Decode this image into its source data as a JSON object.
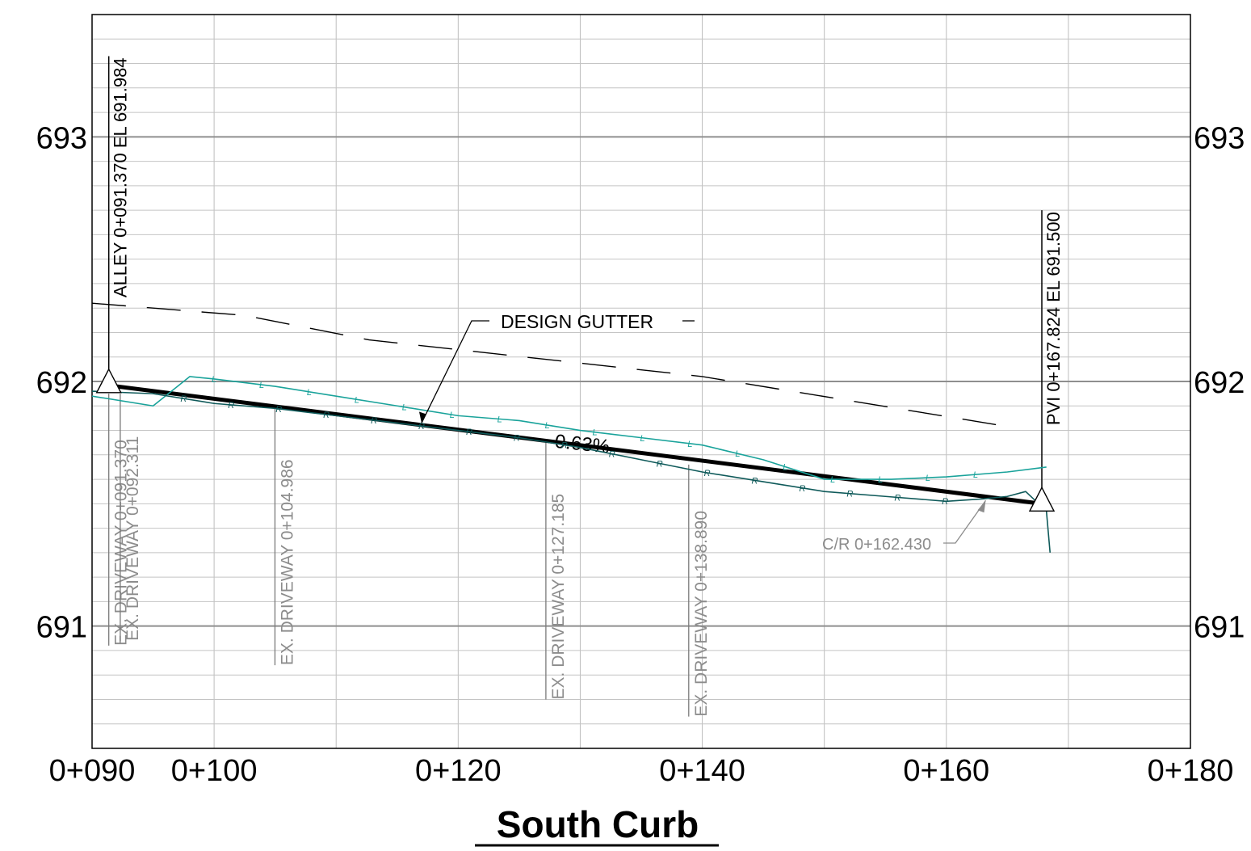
{
  "chart_data": {
    "type": "line",
    "title": "South Curb",
    "x_ticks": [
      "0+090",
      "0+100",
      "0+120",
      "0+140",
      "0+160",
      "0+180"
    ],
    "y_ticks": [
      "691",
      "692",
      "693"
    ],
    "xlim": [
      90,
      180
    ],
    "ylim": [
      690.5,
      693.5
    ],
    "grid": true,
    "series": [
      {
        "name": "DESIGN GUTTER",
        "grade_label": "0.63%",
        "x": [
          91.37,
          167.824
        ],
        "y": [
          691.984,
          691.5
        ]
      },
      {
        "name": "",
        "marker": "L",
        "x": [
          90,
          95,
          98,
          100,
          105,
          110,
          115,
          120,
          125,
          130,
          135,
          140,
          145,
          150,
          155.5,
          160,
          165,
          168.2
        ],
        "y": [
          691.94,
          691.9,
          692.02,
          692.01,
          691.98,
          691.94,
          691.9,
          691.86,
          691.84,
          691.8,
          691.77,
          691.74,
          691.68,
          691.6,
          691.6,
          691.61,
          691.63,
          691.65
        ]
      },
      {
        "name": "",
        "marker": "R",
        "x": [
          90,
          95,
          100,
          105,
          110,
          115,
          120,
          125,
          130,
          135,
          140,
          145,
          150,
          155,
          160,
          163,
          165,
          166.5,
          168.2,
          168.5
        ],
        "y": [
          691.96,
          691.95,
          691.91,
          691.89,
          691.86,
          691.83,
          691.8,
          691.77,
          691.73,
          691.68,
          691.63,
          691.59,
          691.55,
          691.53,
          691.51,
          691.52,
          691.53,
          691.55,
          691.47,
          691.3
        ]
      },
      {
        "name": "",
        "dashed": true,
        "x": [
          90,
          102.5,
          112.7,
          140,
          164.5
        ],
        "y": [
          692.32,
          692.27,
          692.17,
          692.02,
          691.82
        ]
      }
    ],
    "annotations": [
      {
        "text": "DESIGN GUTTER",
        "x": 117,
        "y": 691.83
      },
      {
        "text": "C/R 0+162.430",
        "x": 162.43,
        "y": 691.52
      }
    ],
    "vertical_labels": [
      {
        "text": "ALLEY 0+091.370 EL 691.984",
        "x": 91.37,
        "y_top": 693.33,
        "y_bottom": 691.97,
        "style": "black"
      },
      {
        "text": "PVI 0+167.824 EL 691.500",
        "x": 167.824,
        "y_top": 692.7,
        "y_bottom": 691.55,
        "style": "black"
      },
      {
        "text": "EX. DRIVEWAY 0+091.370",
        "x": 91.37,
        "y_top": 691.95,
        "y_bottom": 690.92,
        "style": "grey"
      },
      {
        "text": "EX. DRIVEWAY 0+092.311",
        "x": 92.311,
        "y_top": 691.95,
        "y_bottom": 690.94,
        "style": "grey"
      },
      {
        "text": "EX. DRIVEWAY 0+104.986",
        "x": 104.986,
        "y_top": 691.89,
        "y_bottom": 690.84,
        "style": "grey"
      },
      {
        "text": "EX. DRIVEWAY 0+127.185",
        "x": 127.185,
        "y_top": 691.76,
        "y_bottom": 690.7,
        "style": "grey"
      },
      {
        "text": "EX. DRIVEWAY 0+138.890",
        "x": 138.89,
        "y_top": 691.66,
        "y_bottom": 690.63,
        "style": "grey"
      }
    ]
  }
}
